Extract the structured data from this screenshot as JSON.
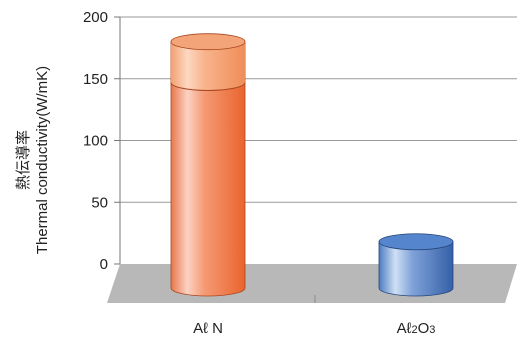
{
  "chart_data": {
    "type": "bar",
    "categories": [
      "Aℓ N",
      "Aℓ2O3"
    ],
    "values": [
      180,
      18
    ],
    "sub_values": [
      147,
      null
    ],
    "ylabel_ja": "熱伝導率",
    "ylabel": "Thermal conductivity(W/mK)",
    "xlabel": "",
    "ylim": [
      0,
      200
    ],
    "yticks": [
      0,
      50,
      100,
      150,
      200
    ],
    "grid": true,
    "colors": {
      "bar_1": "#f07848",
      "bar_1_top_band": "#f6a070",
      "bar_2": "#3f6fb8",
      "floor": "#b8b8b8"
    }
  }
}
